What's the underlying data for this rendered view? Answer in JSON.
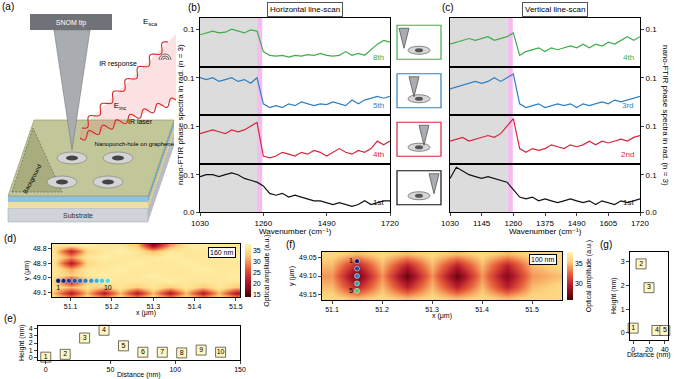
{
  "diagram": {
    "label": "(a)",
    "tip": "SNOM tip",
    "response": "IR response",
    "scattered": {
      "text": "E",
      "sub": "sca"
    },
    "laser": "IR laser",
    "incident": {
      "text": "E",
      "sub": "inc"
    },
    "background": "Background",
    "hole": "Nanopunch-hole on graphene",
    "substrate": "Substrate"
  },
  "chart_data": [
    {
      "type": "line",
      "panel": "(b)",
      "title": "Horizontal line-scan",
      "x_label": "Wavenumber (cm⁻¹)",
      "y_label": "nano-FTIR phase spectra in rad. (n = 3)",
      "grid": false,
      "x": [
        1030,
        1053,
        1076,
        1099,
        1122,
        1145,
        1168,
        1191,
        1214,
        1237,
        1260,
        1283,
        1306,
        1329,
        1352,
        1375,
        1398,
        1421,
        1444,
        1467,
        1490,
        1513,
        1536,
        1559,
        1582,
        1605,
        1628,
        1651,
        1674,
        1697,
        1720
      ],
      "xlim": [
        1030,
        1720
      ],
      "xticks": [
        1030,
        1260,
        1490,
        1720
      ],
      "ylim": [
        0,
        0.13
      ],
      "regions": [
        {
          "x0": 1030,
          "x1": 1245,
          "color": "#dcdcdc"
        },
        {
          "x0": 1238,
          "x1": 1256,
          "color": "#f3bdf0"
        }
      ],
      "series": [
        {
          "name": "8th",
          "color": "#3fae49",
          "yticks": [
            0.1
          ],
          "values": [
            0.085,
            0.09,
            0.095,
            0.09,
            0.092,
            0.1,
            0.095,
            0.09,
            0.098,
            0.095,
            0.04,
            0.03,
            0.028,
            0.03,
            0.025,
            0.03,
            0.028,
            0.032,
            0.03,
            0.035,
            0.03,
            0.028,
            0.03,
            0.04,
            0.03,
            0.035,
            0.03,
            0.045,
            0.06,
            0.07,
            0.065
          ]
        },
        {
          "name": "5th",
          "color": "#2f7fc1",
          "yticks": [
            0.1
          ],
          "values": [
            0.1,
            0.095,
            0.1,
            0.09,
            0.095,
            0.1,
            0.09,
            0.095,
            0.085,
            0.1,
            0.03,
            0.02,
            0.025,
            0.02,
            0.03,
            0.025,
            0.035,
            0.03,
            0.025,
            0.03,
            0.028,
            0.035,
            0.03,
            0.025,
            0.04,
            0.03,
            0.04,
            0.045,
            0.05,
            0.045,
            0.05
          ]
        },
        {
          "name": "4th",
          "color": "#d7263d",
          "yticks": [
            0.1
          ],
          "values": [
            0.08,
            0.085,
            0.09,
            0.085,
            0.08,
            0.09,
            0.085,
            0.09,
            0.1,
            0.11,
            0.02,
            0.015,
            0.02,
            0.03,
            0.025,
            0.02,
            0.03,
            0.025,
            0.035,
            0.03,
            0.02,
            0.03,
            0.04,
            0.03,
            0.025,
            0.035,
            0.03,
            0.04,
            0.06,
            0.05,
            0.06
          ]
        },
        {
          "name": "1st",
          "color": "#111111",
          "yticks": [
            {
              "value": 0,
              "label": "0.0"
            },
            0.1
          ],
          "values": [
            0.095,
            0.1,
            0.1,
            0.095,
            0.1,
            0.105,
            0.1,
            0.09,
            0.085,
            0.08,
            0.07,
            0.05,
            0.045,
            0.05,
            0.04,
            0.045,
            0.04,
            0.035,
            0.03,
            0.03,
            0.025,
            0.02,
            0.025,
            0.02,
            0.015,
            0.02,
            0.03,
            0.02,
            0.025,
            0.03,
            0.03
          ]
        }
      ]
    },
    {
      "type": "line",
      "panel": "(c)",
      "title": "Vertical line-scan",
      "x_label": "Wavenumber (cm⁻¹)",
      "y_label": "nano-FTIR phase spectra in rad. (n = 3)",
      "grid": false,
      "x": [
        1030,
        1053,
        1076,
        1099,
        1122,
        1145,
        1168,
        1191,
        1214,
        1237,
        1260,
        1283,
        1306,
        1329,
        1352,
        1375,
        1398,
        1421,
        1444,
        1467,
        1490,
        1513,
        1536,
        1559,
        1582,
        1605,
        1628,
        1651,
        1674,
        1697,
        1720
      ],
      "xlim": [
        1030,
        1720
      ],
      "xticks": [
        1030,
        1145,
        1260,
        1375,
        1490,
        1605,
        1720
      ],
      "ylim": [
        0,
        0.13
      ],
      "regions": [
        {
          "x0": 1030,
          "x1": 1240,
          "color": "#dcdcdc"
        },
        {
          "x0": 1240,
          "x1": 1258,
          "color": "#f3bdf0"
        }
      ],
      "series": [
        {
          "name": "4th",
          "color": "#3fae49",
          "yticks": [
            0.1
          ],
          "values": [
            0.06,
            0.065,
            0.07,
            0.075,
            0.07,
            0.075,
            0.08,
            0.07,
            0.075,
            0.08,
            0.09,
            0.03,
            0.04,
            0.045,
            0.05,
            0.04,
            0.05,
            0.045,
            0.05,
            0.055,
            0.05,
            0.06,
            0.05,
            0.06,
            0.055,
            0.065,
            0.06,
            0.07,
            0.08,
            0.07,
            0.08
          ]
        },
        {
          "name": "3rd",
          "color": "#2f7fc1",
          "yticks": [
            0.1
          ],
          "values": [
            0.07,
            0.075,
            0.08,
            0.085,
            0.09,
            0.085,
            0.09,
            0.1,
            0.09,
            0.1,
            0.11,
            0.03,
            0.02,
            0.025,
            0.03,
            0.02,
            0.025,
            0.03,
            0.025,
            0.03,
            0.02,
            0.03,
            0.025,
            0.03,
            0.035,
            0.03,
            0.04,
            0.035,
            0.04,
            0.045,
            0.05
          ]
        },
        {
          "name": "2nd",
          "color": "#d7263d",
          "yticks": [
            0.1
          ],
          "values": [
            0.06,
            0.065,
            0.07,
            0.06,
            0.065,
            0.07,
            0.075,
            0.07,
            0.08,
            0.1,
            0.12,
            0.04,
            0.03,
            0.04,
            0.035,
            0.04,
            0.05,
            0.045,
            0.04,
            0.05,
            0.045,
            0.05,
            0.06,
            0.05,
            0.06,
            0.055,
            0.06,
            0.065,
            0.06,
            0.07,
            0.075
          ]
        },
        {
          "name": "1st",
          "color": "#111111",
          "yticks": [
            {
              "value": 0,
              "label": "0.0"
            },
            0.1
          ],
          "values": [
            0.09,
            0.12,
            0.11,
            0.1,
            0.095,
            0.09,
            0.095,
            0.09,
            0.085,
            0.08,
            0.06,
            0.04,
            0.035,
            0.04,
            0.03,
            0.035,
            0.03,
            0.025,
            0.03,
            0.035,
            0.03,
            0.025,
            0.03,
            0.02,
            0.03,
            0.025,
            0.02,
            0.03,
            0.025,
            0.03,
            0.035
          ]
        }
      ]
    },
    {
      "type": "heatmap",
      "panel": "(d)",
      "x_label": "x (μm)",
      "y_label": "y (μm)",
      "colorbar_title": "Optical amplitude (a.u.)",
      "scale_bar": "160 nm",
      "x": [
        51.06,
        51.1,
        51.14,
        51.18,
        51.22,
        51.26,
        51.3,
        51.34,
        51.38,
        51.42,
        51.46,
        51.5
      ],
      "y": [
        48.78,
        48.82,
        48.86,
        48.9,
        48.94,
        48.98,
        49.02,
        49.06,
        49.1,
        49.14
      ],
      "z": [
        [
          36,
          36,
          37,
          36,
          36,
          33,
          18,
          30,
          36,
          37,
          36,
          36
        ],
        [
          35,
          22,
          34,
          36,
          37,
          36,
          32,
          36,
          36,
          36,
          37,
          36
        ],
        [
          36,
          30,
          36,
          37,
          36,
          36,
          36,
          37,
          36,
          36,
          36,
          37
        ],
        [
          35,
          21,
          34,
          36,
          36,
          37,
          36,
          36,
          37,
          36,
          36,
          36
        ],
        [
          36,
          31,
          36,
          36,
          37,
          36,
          36,
          36,
          36,
          37,
          36,
          36
        ],
        [
          36,
          33,
          36,
          37,
          36,
          36,
          37,
          36,
          36,
          36,
          36,
          37
        ],
        [
          34,
          20,
          33,
          36,
          36,
          36,
          36,
          37,
          36,
          36,
          36,
          36
        ],
        [
          35,
          32,
          35,
          33,
          36,
          33,
          36,
          33,
          36,
          33,
          36,
          33
        ],
        [
          32,
          21,
          32,
          21,
          32,
          21,
          32,
          21,
          32,
          21,
          32,
          21
        ],
        [
          35,
          31,
          35,
          31,
          35,
          31,
          35,
          31,
          35,
          31,
          35,
          31
        ]
      ],
      "xlim": [
        51.055,
        51.51
      ],
      "ylim": [
        49.13,
        48.77
      ],
      "xticks": [
        51.1,
        51.2,
        51.3,
        51.4,
        51.5
      ],
      "yticks": [
        48.8,
        48.9,
        {
          "value": 49,
          "label": "49.0"
        },
        49.1
      ],
      "zlim": [
        14,
        38
      ],
      "zticks": [
        15,
        20,
        25,
        30,
        35
      ],
      "scan_points": {
        "x": [
          51.07,
          51.083,
          51.096,
          51.11,
          51.123,
          51.136,
          51.15,
          51.163,
          51.176,
          51.19
        ],
        "y": [
          49.02,
          49.02,
          49.02,
          49.02,
          49.02,
          49.02,
          49.02,
          49.02,
          49.02,
          49.02
        ],
        "colors": [
          "#0d1b6e",
          "#13287e",
          "#1a3a8f",
          "#1f4fa0",
          "#2166ac",
          "#2a7fbc",
          "#3498c8",
          "#3fb0d2",
          "#4cc6d8",
          "#5ad8d8"
        ],
        "labels": [
          "1",
          null,
          null,
          null,
          null,
          null,
          null,
          null,
          null,
          "10"
        ]
      }
    },
    {
      "type": "scatter",
      "panel": "(e)",
      "x_label": "Distance (nm)",
      "y_label": "Height (nm)",
      "grid": false,
      "marker": "square",
      "color": "#fff6c2",
      "x": [
        0,
        15,
        30,
        45,
        60,
        75,
        90,
        105,
        120,
        135
      ],
      "values": [
        0,
        0.4,
        2.7,
        3.8,
        1.6,
        0.7,
        0.7,
        0.6,
        1.0,
        0.7
      ],
      "point_labels": [
        "1",
        "2",
        "3",
        "4",
        "5",
        "6",
        "7",
        "8",
        "9",
        "10"
      ],
      "xlim": [
        -6,
        150
      ],
      "xticks": [
        0,
        50,
        100,
        150
      ],
      "ylim": [
        -0.4,
        4.4
      ],
      "yticks": [
        0,
        1,
        2,
        3,
        4
      ]
    },
    {
      "type": "heatmap",
      "panel": "(f)",
      "x_label": "x (μm)",
      "y_label": "y (μm)",
      "colorbar_title": "Optical amplitude (a.u.)",
      "scale_bar": "100 nm",
      "x": [
        51.1,
        51.15,
        51.2,
        51.25,
        51.3,
        51.35,
        51.4,
        51.45,
        51.5,
        51.55
      ],
      "y": [
        49.04,
        49.07,
        49.1,
        49.13,
        49.16
      ],
      "z": [
        [
          36,
          35,
          36,
          35,
          36,
          35,
          36,
          35,
          36,
          36
        ],
        [
          35,
          30,
          35,
          30,
          35,
          30,
          35,
          30,
          35,
          36
        ],
        [
          34,
          27,
          34,
          27,
          34,
          27,
          34,
          28,
          34,
          35
        ],
        [
          35,
          30,
          35,
          30,
          35,
          30,
          35,
          30,
          35,
          36
        ],
        [
          36,
          35,
          36,
          35,
          36,
          35,
          36,
          35,
          36,
          36
        ]
      ],
      "xlim": [
        51.08,
        51.56
      ],
      "ylim": [
        49.165,
        49.035
      ],
      "xticks": [
        51.1,
        51.2,
        51.3,
        51.4,
        51.5
      ],
      "yticks": [
        49.05,
        {
          "value": 49.1,
          "label": "49.10"
        },
        49.15
      ],
      "zlim": [
        26,
        38
      ],
      "zticks": [
        30,
        35
      ],
      "scan_points": {
        "x": [
          51.15,
          51.15,
          51.15,
          51.15,
          51.15
        ],
        "y": [
          49.06,
          49.08,
          49.1,
          49.12,
          49.14
        ],
        "colors": [
          "#0d1b6e",
          "#1f4fa0",
          "#2a7fbc",
          "#3aa59a",
          "#5cbf6a"
        ],
        "labels": [
          "1",
          null,
          null,
          null,
          "5"
        ]
      }
    },
    {
      "type": "scatter",
      "panel": "(g)",
      "x_label": "Distance (nm)",
      "y_label": "Height (nm)",
      "grid": false,
      "marker": "square",
      "color": "#fff6c2",
      "x": [
        0,
        10,
        20,
        30,
        40
      ],
      "values": [
        0.2,
        2.9,
        1.9,
        0.1,
        0.1
      ],
      "point_labels": [
        "1",
        "2",
        "3",
        "4",
        "5"
      ],
      "xlim": [
        -4,
        44
      ],
      "xticks": [
        0,
        20,
        40
      ],
      "ylim": [
        -0.3,
        3.4
      ],
      "yticks": [
        0,
        1,
        2,
        3
      ]
    }
  ]
}
